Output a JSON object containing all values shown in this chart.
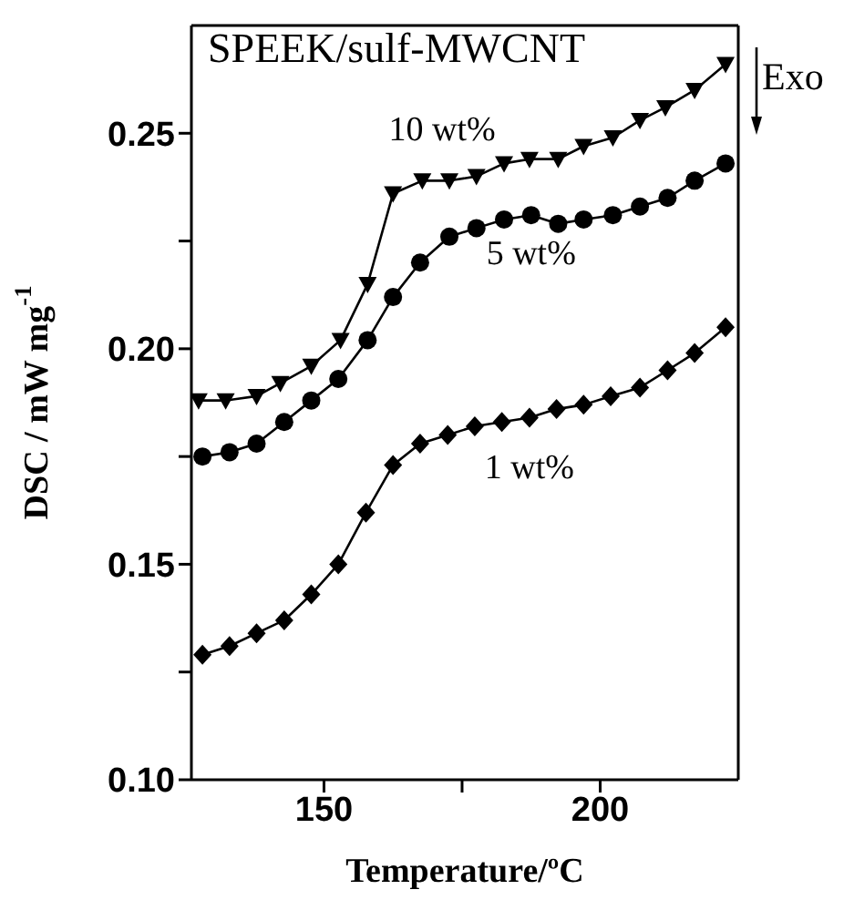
{
  "chart_data": {
    "type": "line",
    "title": "SPEEK/sulf-MWCNT",
    "xlabel": "Temperature/ºC",
    "ylabel": "DSC / mW mg$^{-1}$",
    "annotations": [
      "Exo"
    ],
    "xlim": [
      126,
      225
    ],
    "xticks": [
      150,
      {
        "value": 175,
        "label": null
      },
      200
    ],
    "ylim": [
      0.1,
      0.275
    ],
    "yticks": [
      {
        "value": 0.1,
        "label": "0.10"
      },
      {
        "value": 0.125,
        "label": null
      },
      0.15,
      {
        "value": 0.175,
        "label": null
      },
      {
        "value": 0.2,
        "label": "0.20"
      },
      {
        "value": 0.225,
        "label": null
      },
      0.25
    ],
    "series": [
      {
        "name": "10 wt%",
        "color": "#000000",
        "marker": "triangle",
        "x": [
          127.3,
          132.2,
          137.8,
          142.1,
          147.7,
          153.0,
          157.9,
          162.5,
          167.8,
          172.7,
          177.6,
          182.6,
          187.2,
          192.4,
          197.0,
          202.3,
          207.2,
          211.8,
          217.1,
          222.7
        ],
        "values": [
          0.188,
          0.188,
          0.189,
          0.192,
          0.196,
          0.202,
          0.215,
          0.236,
          0.239,
          0.239,
          0.24,
          0.243,
          0.244,
          0.244,
          0.247,
          0.249,
          0.253,
          0.256,
          0.26,
          0.266
        ]
      },
      {
        "name": "5 wt%",
        "color": "#000000",
        "marker": "circle",
        "x": [
          128.0,
          132.9,
          137.8,
          142.8,
          147.7,
          152.6,
          157.9,
          162.5,
          167.4,
          172.7,
          177.6,
          182.6,
          187.5,
          192.4,
          197.0,
          202.3,
          207.2,
          212.2,
          217.1,
          222.7
        ],
        "values": [
          0.175,
          0.176,
          0.178,
          0.183,
          0.188,
          0.193,
          0.202,
          0.212,
          0.22,
          0.226,
          0.228,
          0.23,
          0.231,
          0.229,
          0.23,
          0.231,
          0.233,
          0.235,
          0.239,
          0.243
        ]
      },
      {
        "name": "1 wt%",
        "color": "#000000",
        "marker": "diamond",
        "x": [
          128.0,
          132.9,
          137.8,
          142.8,
          147.7,
          152.6,
          157.6,
          162.5,
          167.4,
          172.4,
          177.3,
          182.2,
          187.2,
          192.1,
          197.0,
          201.9,
          207.2,
          212.2,
          217.1,
          222.7
        ],
        "values": [
          0.129,
          0.131,
          0.134,
          0.137,
          0.143,
          0.15,
          0.162,
          0.173,
          0.178,
          0.18,
          0.182,
          0.183,
          0.184,
          0.186,
          0.187,
          0.189,
          0.191,
          0.195,
          0.199,
          0.205
        ]
      }
    ]
  }
}
